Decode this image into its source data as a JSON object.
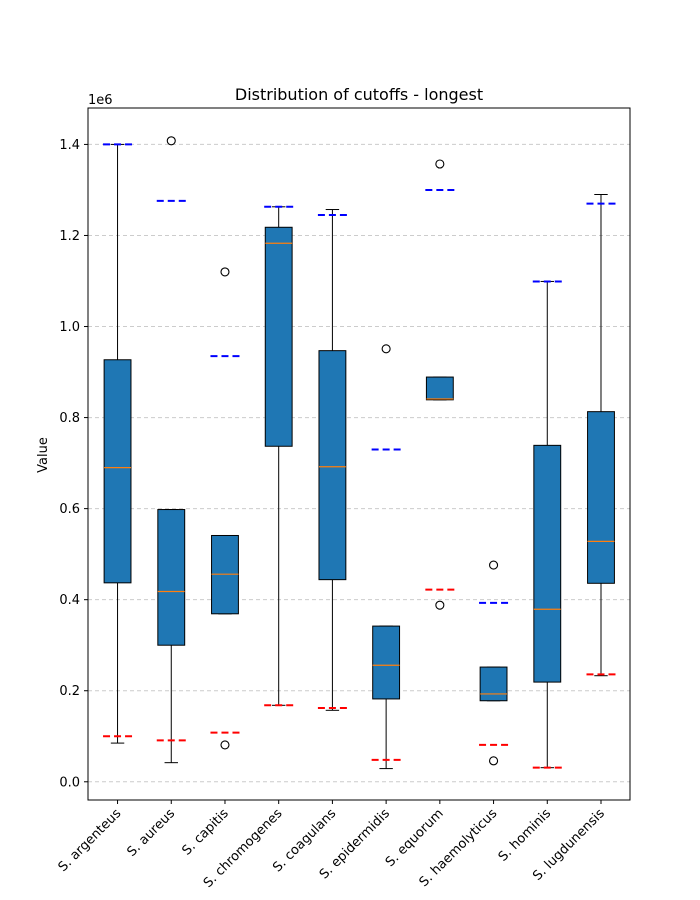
{
  "chart_data": {
    "type": "box",
    "title": "Distribution of cutoffs - longest",
    "ylabel": "Value",
    "xlabel": "",
    "y_offset_label": "1e6",
    "y_scale": 1000000,
    "ylim": [
      -40000,
      1480000
    ],
    "yticks": [
      0,
      200000,
      400000,
      600000,
      800000,
      1000000,
      1200000,
      1400000
    ],
    "ytick_labels": [
      "0.0",
      "0.2",
      "0.4",
      "0.6",
      "0.8",
      "1.0",
      "1.2",
      "1.4"
    ],
    "grid": "horizontal dashed",
    "colors": {
      "box": "#1f77b4",
      "median": "#ff7f0e",
      "max_ref": "#0000ff",
      "min_ref": "#ff0000"
    },
    "categories": [
      "S. argenteus",
      "S. aureus",
      "S. capitis",
      "S. chromogenes",
      "S. coagulans",
      "S. epidermidis",
      "S. equorum",
      "S. haemolyticus",
      "S. hominis",
      "S. lugdunensis"
    ],
    "boxes": [
      {
        "whislo": 85000,
        "q1": 437000,
        "med": 690000,
        "q3": 927000,
        "whishi": 1400000,
        "fliers": [],
        "ref_max": 1400000,
        "ref_min": 100000
      },
      {
        "whislo": 42000,
        "q1": 300000,
        "med": 418000,
        "q3": 598000,
        "whishi": 598000,
        "fliers": [
          1408000
        ],
        "ref_max": 1276000,
        "ref_min": 91000
      },
      {
        "whislo": 369000,
        "q1": 369000,
        "med": 456000,
        "q3": 541000,
        "whishi": 541000,
        "fliers": [
          1120000,
          81000
        ],
        "ref_max": 935000,
        "ref_min": 108000
      },
      {
        "whislo": 168000,
        "q1": 737000,
        "med": 1183000,
        "q3": 1218000,
        "whishi": 1263000,
        "fliers": [],
        "ref_max": 1263000,
        "ref_min": 168000
      },
      {
        "whislo": 157000,
        "q1": 444000,
        "med": 692000,
        "q3": 947000,
        "whishi": 1257000,
        "fliers": [],
        "ref_max": 1245000,
        "ref_min": 162000
      },
      {
        "whislo": 29000,
        "q1": 182000,
        "med": 256000,
        "q3": 342000,
        "whishi": 342000,
        "fliers": [
          951000
        ],
        "ref_max": 730000,
        "ref_min": 48000
      },
      {
        "whislo": 839000,
        "q1": 839000,
        "med": 841000,
        "q3": 889000,
        "whishi": 889000,
        "fliers": [
          1357000,
          388000
        ],
        "ref_max": 1300000,
        "ref_min": 422000
      },
      {
        "whislo": 178000,
        "q1": 178000,
        "med": 193000,
        "q3": 252000,
        "whishi": 252000,
        "fliers": [
          476000,
          46000
        ],
        "ref_max": 393000,
        "ref_min": 81000
      },
      {
        "whislo": 31000,
        "q1": 219000,
        "med": 379000,
        "q3": 739000,
        "whishi": 1099000,
        "fliers": [],
        "ref_max": 1099000,
        "ref_min": 31000
      },
      {
        "whislo": 233000,
        "q1": 436000,
        "med": 528000,
        "q3": 813000,
        "whishi": 1290000,
        "fliers": [],
        "ref_max": 1270000,
        "ref_min": 236000
      }
    ]
  }
}
